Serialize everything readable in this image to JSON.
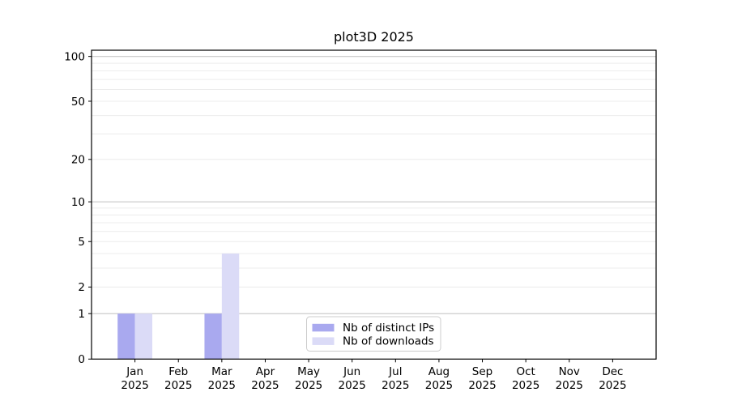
{
  "chart_data": {
    "type": "bar",
    "title": "plot3D 2025",
    "x_ticks": [
      {
        "month": "Jan",
        "year": "2025"
      },
      {
        "month": "Feb",
        "year": "2025"
      },
      {
        "month": "Mar",
        "year": "2025"
      },
      {
        "month": "Apr",
        "year": "2025"
      },
      {
        "month": "May",
        "year": "2025"
      },
      {
        "month": "Jun",
        "year": "2025"
      },
      {
        "month": "Jul",
        "year": "2025"
      },
      {
        "month": "Aug",
        "year": "2025"
      },
      {
        "month": "Sep",
        "year": "2025"
      },
      {
        "month": "Oct",
        "year": "2025"
      },
      {
        "month": "Nov",
        "year": "2025"
      },
      {
        "month": "Dec",
        "year": "2025"
      }
    ],
    "y_ticks": [
      {
        "value": 0,
        "label": "0"
      },
      {
        "value": 1,
        "label": "1"
      },
      {
        "value": 2,
        "label": "2"
      },
      {
        "value": 5,
        "label": "5"
      },
      {
        "value": 10,
        "label": "10"
      },
      {
        "value": 20,
        "label": "20"
      },
      {
        "value": 50,
        "label": "50"
      },
      {
        "value": 100,
        "label": "100"
      }
    ],
    "y_scale": "log1p",
    "y_max": 110,
    "grid_major_values": [
      1,
      10,
      100
    ],
    "grid_minor_values": [
      2,
      3,
      4,
      5,
      6,
      7,
      8,
      9,
      20,
      30,
      40,
      50,
      60,
      70,
      80,
      90
    ],
    "series": [
      {
        "name": "Nb of distinct IPs",
        "color": "#a9a9ef",
        "values": [
          1,
          0,
          1,
          0,
          0,
          0,
          0,
          0,
          0,
          0,
          0,
          0
        ]
      },
      {
        "name": "Nb of downloads",
        "color": "#dbdbf7",
        "values": [
          1,
          0,
          4,
          0,
          0,
          0,
          0,
          0,
          0,
          0,
          0,
          0
        ]
      }
    ],
    "legend": {
      "position": "lower center",
      "items": [
        "Nb of distinct IPs",
        "Nb of downloads"
      ]
    },
    "colors": {
      "spine": "#000000",
      "grid_major": "#c6c6c6",
      "grid_minor": "#ececec",
      "tick": "#000000",
      "legend_border": "#cccccc",
      "legend_bg": "#ffffff"
    }
  }
}
